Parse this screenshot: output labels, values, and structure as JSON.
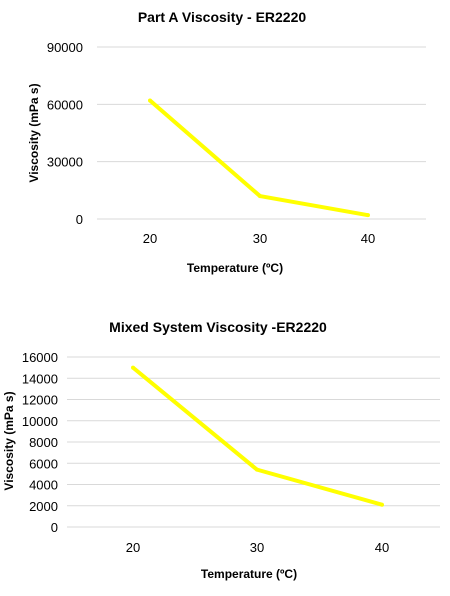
{
  "line_color": "#ffff00",
  "grid_color": "#d9d9d9",
  "chart_data": [
    {
      "type": "line",
      "title": "Part A Viscosity - ER2220",
      "xlabel": "Temperature (ºC)",
      "ylabel": "Viscosity (mPa s)",
      "categories": [
        "20",
        "30",
        "40"
      ],
      "series": [
        {
          "values": [
            62000,
            12000,
            2000
          ]
        }
      ],
      "ylim": [
        0,
        90000
      ],
      "yticks": [
        "0",
        "30000",
        "60000",
        "90000"
      ],
      "grid": true
    },
    {
      "type": "line",
      "title": "Mixed System Viscosity -ER2220",
      "xlabel": "Temperature (ºC)",
      "ylabel": "Viscosity (mPa s)",
      "categories": [
        "20",
        "30",
        "40"
      ],
      "series": [
        {
          "values": [
            15000,
            5400,
            2100
          ]
        }
      ],
      "ylim": [
        0,
        16000
      ],
      "yticks": [
        "0",
        "2000",
        "4000",
        "6000",
        "8000",
        "10000",
        "12000",
        "14000",
        "16000"
      ],
      "grid": true
    }
  ]
}
